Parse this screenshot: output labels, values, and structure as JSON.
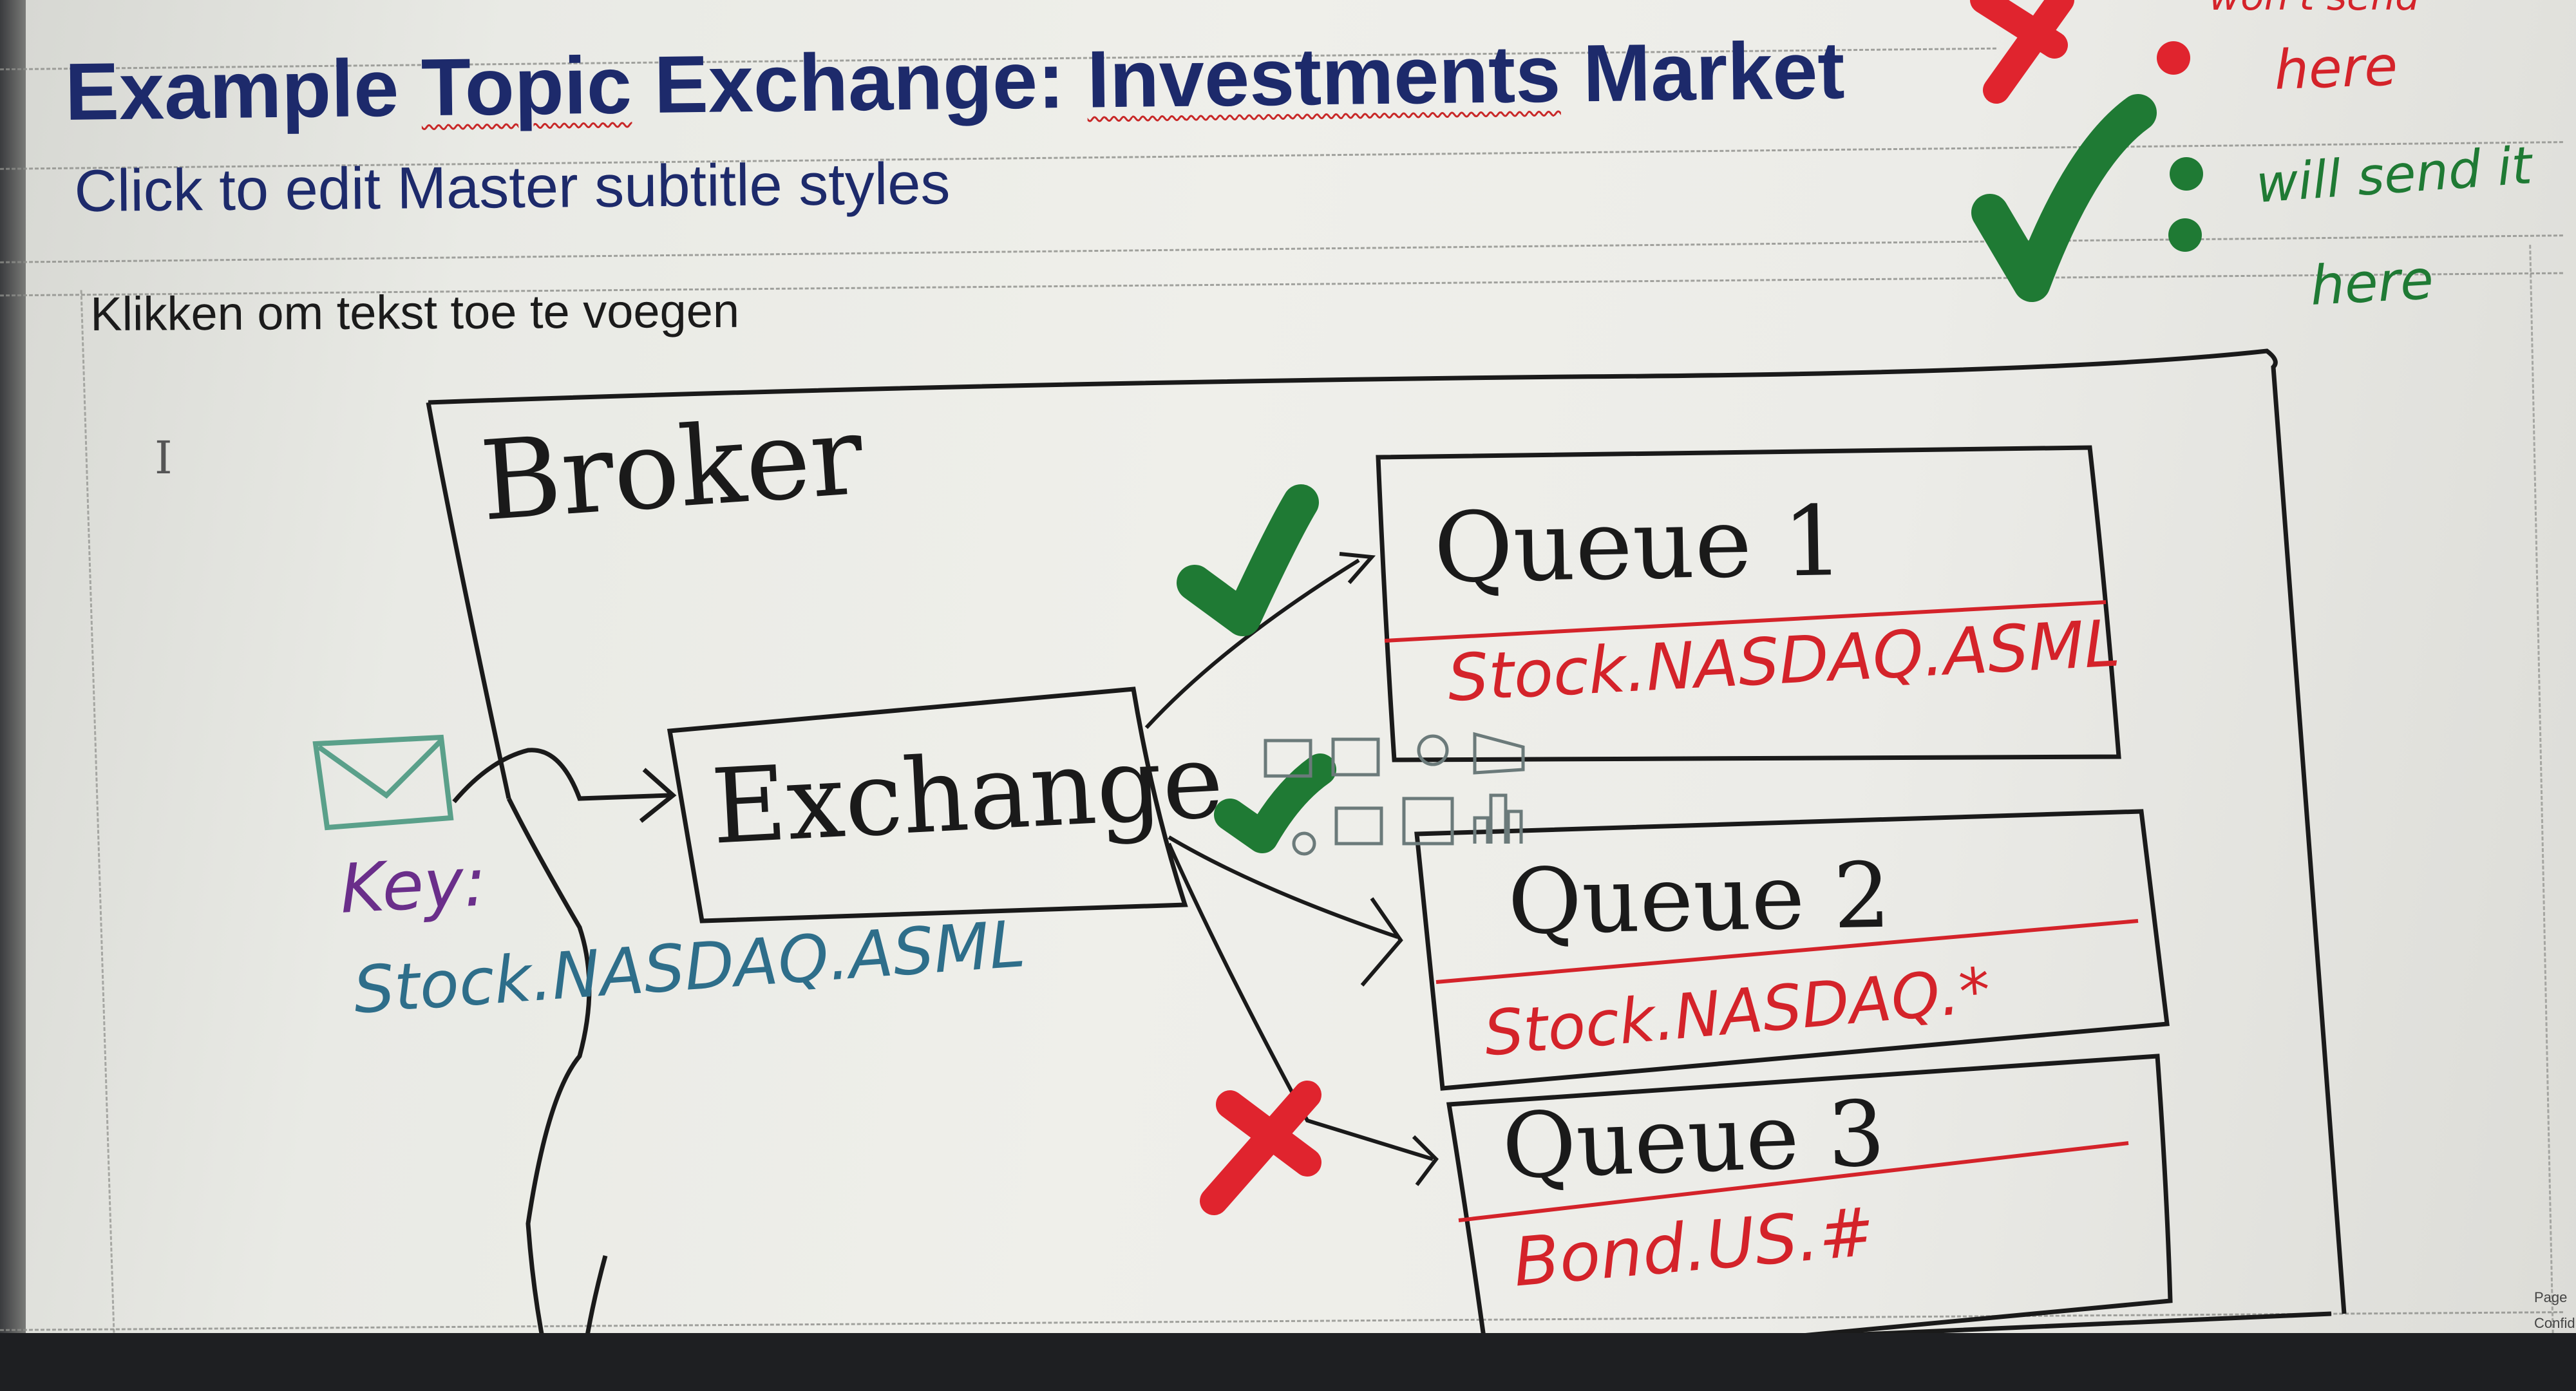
{
  "slide": {
    "title_part1": "Example ",
    "title_part2": "Topic",
    "title_part3": " Exchange: ",
    "title_part4": "Investments",
    "title_part5": " Market",
    "subtitle": "Click to edit Master subtitle styles",
    "content_placeholder": "Klikken om tekst toe te voegen",
    "cursor_glyph": "I"
  },
  "annotations": {
    "legend_top": "won't send",
    "legend_top_2": "here",
    "legend_bottom": "will send it",
    "legend_bottom_2": "here",
    "broker_label": "Broker",
    "exchange_label": "Exchange",
    "key_label": "Key:",
    "routing_key": "Stock.NASDAQ.ASML",
    "queues": [
      {
        "name": "Queue 1",
        "binding": "Stock.NASDAQ.ASML",
        "status": "match"
      },
      {
        "name": "Queue 2",
        "binding": "Stock.NASDAQ.*",
        "status": "match"
      },
      {
        "name": "Queue 3",
        "binding": "Bond.US.#",
        "status": "no-match"
      }
    ]
  },
  "side_text": {
    "page": "Page",
    "confidential": "Confid"
  },
  "colors": {
    "title": "#1d2a6b",
    "check": "#1f7a34",
    "cross": "#e0242e",
    "ink": "#1a1a1a",
    "binding_red": "#d4232a"
  },
  "icons": [
    "insert-picture-icon",
    "insert-online-video-icon",
    "insert-smartart-icon",
    "insert-icons-icon",
    "insert-3d-model-icon",
    "insert-video-icon",
    "insert-table-icon",
    "insert-chart-icon"
  ]
}
